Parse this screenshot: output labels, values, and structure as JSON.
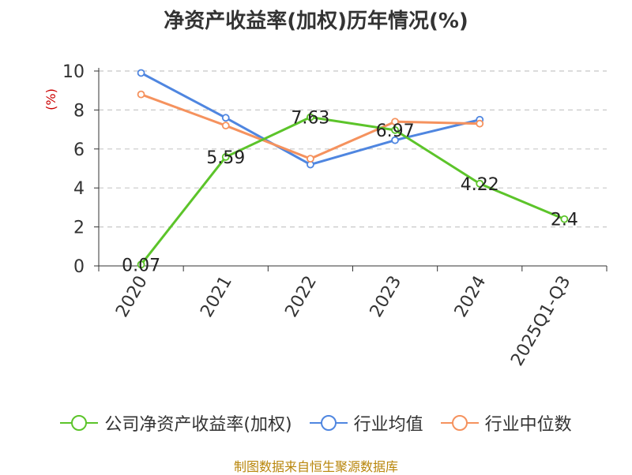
{
  "chart_data": {
    "type": "line",
    "title": "净资产收益率(加权)历年情况(%)",
    "ylabel": "(%)",
    "xlabel": "",
    "categories": [
      "2020",
      "2021",
      "2022",
      "2023",
      "2024",
      "2025Q1-Q3"
    ],
    "ylim": [
      0,
      10
    ],
    "yticks": [
      0,
      2,
      4,
      6,
      8,
      10
    ],
    "grid": true,
    "legend_position": "bottom",
    "series": [
      {
        "name": "公司净资产收益率(加权)",
        "color": "#5cc42a",
        "values": [
          0.07,
          5.59,
          7.63,
          6.97,
          4.22,
          2.4
        ],
        "labels": [
          "0.07",
          "5.59",
          "7.63",
          "6.97",
          "4.22",
          "2.4"
        ]
      },
      {
        "name": "行业均值",
        "color": "#4f86e0",
        "values": [
          9.9,
          7.6,
          5.2,
          6.45,
          7.5,
          null
        ]
      },
      {
        "name": "行业中位数",
        "color": "#f5925e",
        "values": [
          8.8,
          7.2,
          5.5,
          7.4,
          7.3,
          null
        ]
      }
    ]
  },
  "footer": "制图数据来自恒生聚源数据库"
}
